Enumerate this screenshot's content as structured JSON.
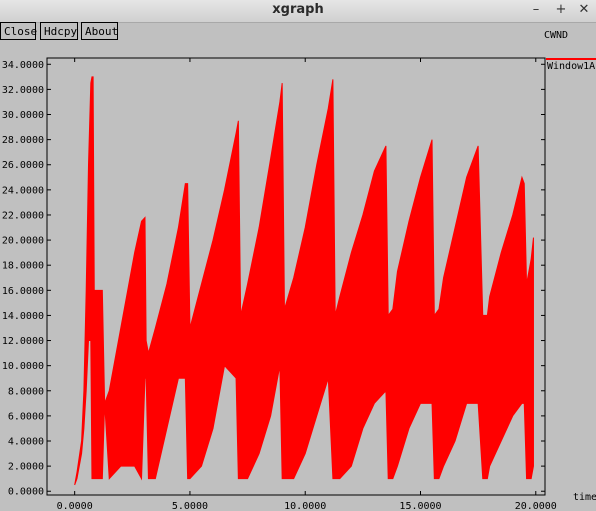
{
  "window": {
    "title": "xgraph",
    "controls": {
      "minimize": "–",
      "maximize": "+",
      "close": "✕"
    }
  },
  "toolbar": {
    "close_label": "Close",
    "hdcpy_label": "Hdcpy",
    "about_label": "About"
  },
  "legend": {
    "title": "CWND",
    "series_label": "Window1A"
  },
  "colors": {
    "series": "#ff0000",
    "background": "#c0c0c0"
  },
  "chart_data": {
    "type": "area",
    "title": "CWND",
    "xlabel": "time",
    "ylabel": "",
    "xlim": [
      -1.2,
      20.4
    ],
    "ylim": [
      -0.3,
      34.5
    ],
    "x_ticks": [
      "0.0000",
      "5.0000",
      "10.0000",
      "15.0000",
      "20.0000"
    ],
    "x_tick_values": [
      0,
      5,
      10,
      15,
      20
    ],
    "y_ticks": [
      "0.0000",
      "2.0000",
      "4.0000",
      "6.0000",
      "8.0000",
      "10.0000",
      "12.0000",
      "14.0000",
      "16.0000",
      "18.0000",
      "20.0000",
      "22.0000",
      "24.0000",
      "26.0000",
      "28.0000",
      "30.0000",
      "32.0000",
      "34.0000"
    ],
    "y_tick_values": [
      0,
      2,
      4,
      6,
      8,
      10,
      12,
      14,
      16,
      18,
      20,
      22,
      24,
      26,
      28,
      30,
      32,
      34
    ],
    "series": [
      {
        "name": "Window1A",
        "color": "#ff0000",
        "envelope": {
          "x": [
            0.0,
            0.1,
            0.3,
            0.4,
            0.5,
            0.6,
            0.7,
            0.75,
            0.8,
            0.85,
            0.9,
            1.2,
            1.3,
            1.5,
            2.0,
            2.3,
            2.6,
            2.9,
            3.05,
            3.1,
            3.2,
            3.5,
            4.0,
            4.5,
            4.8,
            4.9,
            5.0,
            5.5,
            6.0,
            6.5,
            7.0,
            7.1,
            7.2,
            7.5,
            8.0,
            8.5,
            8.9,
            9.0,
            9.1,
            9.5,
            10.0,
            10.5,
            11.0,
            11.2,
            11.3,
            11.5,
            12.0,
            12.5,
            13.0,
            13.5,
            13.6,
            13.8,
            14.0,
            14.5,
            15.0,
            15.5,
            15.6,
            15.8,
            16.0,
            16.5,
            17.0,
            17.5,
            17.7,
            17.9,
            18.0,
            18.5,
            19.0,
            19.4,
            19.5,
            19.6,
            19.8,
            19.9
          ],
          "upper": [
            0.5,
            1.5,
            4.0,
            8.0,
            16.0,
            26.0,
            32.5,
            33.0,
            33.0,
            16.0,
            16.0,
            16.0,
            7.0,
            8.0,
            13.0,
            16.0,
            19.0,
            21.5,
            21.8,
            12.0,
            11.0,
            13.0,
            16.5,
            21.0,
            24.5,
            24.5,
            13.0,
            16.5,
            20.0,
            24.0,
            28.5,
            29.5,
            14.0,
            16.5,
            21.0,
            26.5,
            31.0,
            32.5,
            14.5,
            17.0,
            21.0,
            26.0,
            30.5,
            32.8,
            14.0,
            15.5,
            19.0,
            22.0,
            25.5,
            27.5,
            14.0,
            14.5,
            17.5,
            21.5,
            25.0,
            28.0,
            14.0,
            14.5,
            17.0,
            21.0,
            25.0,
            27.5,
            14.0,
            14.0,
            15.5,
            19.0,
            22.0,
            25.0,
            24.5,
            16.5,
            18.5,
            20.2
          ],
          "lower": [
            0.5,
            1.0,
            3.0,
            5.0,
            8.0,
            12.0,
            12.0,
            1.0,
            1.0,
            1.0,
            1.0,
            1.0,
            7.0,
            1.0,
            2.0,
            2.0,
            2.0,
            1.0,
            9.0,
            9.0,
            1.0,
            1.0,
            5.0,
            9.0,
            9.0,
            1.0,
            1.0,
            2.0,
            5.0,
            10.0,
            9.0,
            1.0,
            1.0,
            1.0,
            3.0,
            6.0,
            10.0,
            1.0,
            1.0,
            1.0,
            3.0,
            6.0,
            9.0,
            1.0,
            1.0,
            1.0,
            2.0,
            5.0,
            7.0,
            8.0,
            1.0,
            1.0,
            2.0,
            5.0,
            7.0,
            7.0,
            1.0,
            1.0,
            2.0,
            4.0,
            7.0,
            7.0,
            1.0,
            1.0,
            2.0,
            4.0,
            6.0,
            7.0,
            7.0,
            1.0,
            1.0,
            2.0
          ]
        }
      }
    ]
  }
}
